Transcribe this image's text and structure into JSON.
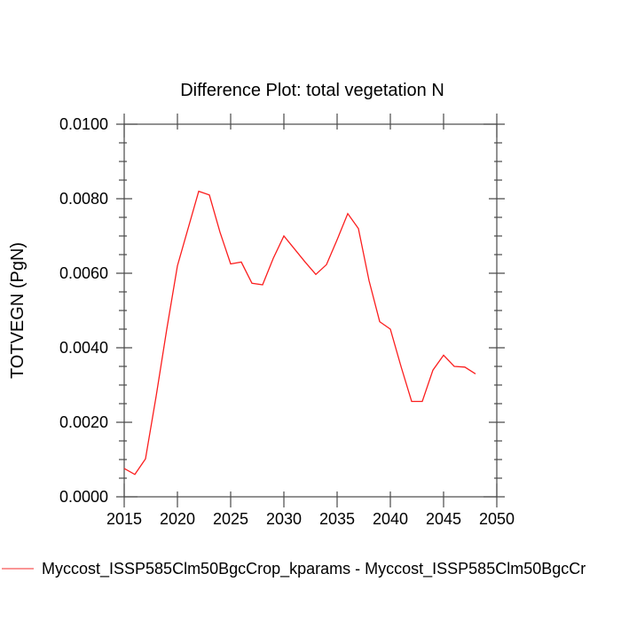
{
  "page": {
    "background_color": "#ffffff"
  },
  "legend": {
    "label": "Myccost_ISSP585Clm50BgcCrop_kparams - Myccost_ISSP585Clm50BgcCr",
    "swatch_color": "#f87272"
  },
  "chart_data": {
    "type": "line",
    "title": "Difference Plot: total vegetation N",
    "xlabel": "",
    "ylabel": "TOTVEGN  (PgN)",
    "xlim": [
      2015,
      2050
    ],
    "ylim": [
      0.0,
      0.01
    ],
    "x_ticks": [
      2015,
      2020,
      2025,
      2030,
      2035,
      2040,
      2045,
      2050
    ],
    "x_tick_labels": [
      "2015",
      "2020",
      "2025",
      "2030",
      "2035",
      "2040",
      "2045",
      "2050"
    ],
    "y_ticks": [
      0.0,
      0.002,
      0.004,
      0.006,
      0.008,
      0.01
    ],
    "y_tick_labels": [
      "0.0000",
      "0.0020",
      "0.0040",
      "0.0060",
      "0.0080",
      "0.0100"
    ],
    "y_minor_step": 0.0005,
    "grid": false,
    "legend_position": "bottom-left",
    "frame_color": "#4a4a4a",
    "series": [
      {
        "name": "Myccost_ISSP585Clm50BgcCrop_kparams - Myccost_ISSP585Clm50BgcCr",
        "color": "#fb1e1e",
        "x": [
          2015,
          2016,
          2017,
          2018,
          2019,
          2020,
          2021,
          2022,
          2023,
          2024,
          2025,
          2026,
          2027,
          2028,
          2029,
          2030,
          2031,
          2032,
          2033,
          2034,
          2035,
          2036,
          2037,
          2038,
          2039,
          2040,
          2041,
          2042,
          2043,
          2044,
          2045,
          2046,
          2047,
          2048
        ],
        "values": [
          0.00076,
          0.0006,
          0.00102,
          0.0027,
          0.0045,
          0.0062,
          0.0072,
          0.0082,
          0.0081,
          0.0071,
          0.00625,
          0.0063,
          0.00573,
          0.00569,
          0.0064,
          0.007,
          0.00665,
          0.0063,
          0.00597,
          0.00623,
          0.0069,
          0.0076,
          0.0072,
          0.0058,
          0.0047,
          0.0045,
          0.0035,
          0.00256,
          0.00256,
          0.0034,
          0.0038,
          0.0035,
          0.00348,
          0.0033
        ]
      }
    ]
  }
}
